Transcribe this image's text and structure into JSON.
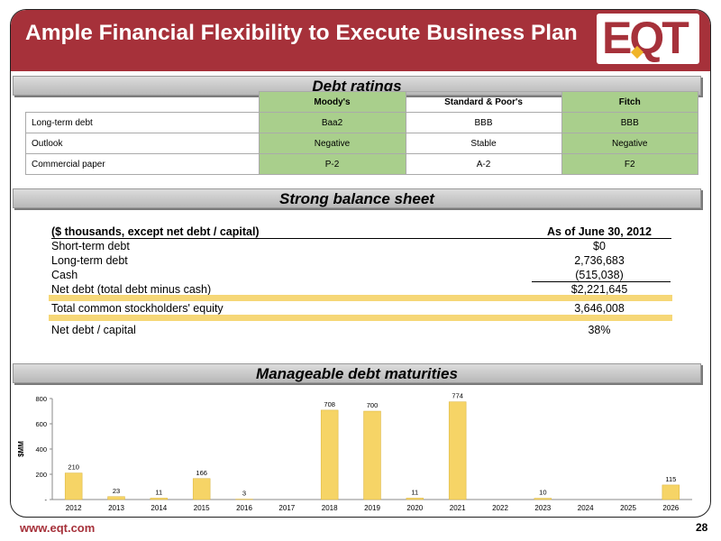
{
  "header": {
    "title": "Ample Financial Flexibility to Execute Business Plan",
    "logo_text": "EQT"
  },
  "ratings": {
    "section_title": "Debt ratings",
    "columns": [
      "Moody's",
      "Standard & Poor's",
      "Fitch"
    ],
    "rows": [
      {
        "label": "Long-term debt",
        "values": [
          "Baa2",
          "BBB",
          "BBB"
        ]
      },
      {
        "label": "Outlook",
        "values": [
          "Negative",
          "Stable",
          "Negative"
        ]
      },
      {
        "label": "Commercial paper",
        "values": [
          "P-2",
          "A-2",
          "F2"
        ]
      }
    ]
  },
  "balance": {
    "section_title": "Strong balance sheet",
    "header_label": "($ thousands, except net debt / capital)",
    "header_value": "As of June 30, 2012",
    "rows": [
      {
        "label": "Short-term debt",
        "value": "$0"
      },
      {
        "label": "Long-term debt",
        "value": "2,736,683"
      },
      {
        "label": "Cash",
        "value": "(515,038)"
      },
      {
        "label": "Net debt (total debt minus cash)",
        "value": "$2,221,645"
      },
      {
        "label": "Total common stockholders' equity",
        "value": "3,646,008"
      },
      {
        "label": "Net debt / capital",
        "value": "38%"
      }
    ]
  },
  "maturities": {
    "section_title": "Manageable debt maturities"
  },
  "chart_data": {
    "type": "bar",
    "categories": [
      "2012",
      "2013",
      "2014",
      "2015",
      "2016",
      "2017",
      "2018",
      "2019",
      "2020",
      "2021",
      "2022",
      "2023",
      "2024",
      "2025",
      "2026"
    ],
    "values": [
      210,
      23,
      11,
      166,
      3,
      0,
      708,
      700,
      11,
      774,
      0,
      10,
      0,
      0,
      115
    ],
    "data_labels": [
      "210",
      "23",
      "11",
      "166",
      "3",
      "",
      "708",
      "700",
      "11",
      "774",
      "",
      "10",
      "",
      "",
      "115"
    ],
    "ylabel": "$MM",
    "ylim": [
      0,
      800
    ],
    "yticks": [
      0,
      200,
      400,
      600,
      800
    ],
    "ytick_labels": [
      "-",
      "200",
      "400",
      "600",
      "800"
    ],
    "bar_color": "#f6d466",
    "grid": false
  },
  "footer": {
    "url": "www.eqt.com",
    "page": "28"
  },
  "colors": {
    "brand": "#a6313a",
    "highlight_green": "#a9cf8c",
    "highlight_yellow": "#f6d777"
  }
}
